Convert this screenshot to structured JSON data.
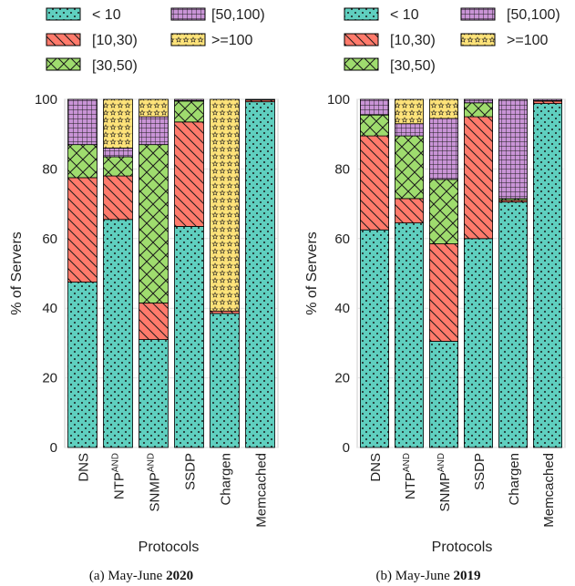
{
  "chart_data": [
    {
      "type": "bar",
      "stacked": true,
      "caption": {
        "prefix": "(a) May-June ",
        "bold": "2020"
      },
      "categories": [
        {
          "name": "DNS",
          "sup": ""
        },
        {
          "name": "NTP",
          "sup": "AND"
        },
        {
          "name": "SNMP",
          "sup": "AND"
        },
        {
          "name": "SSDP",
          "sup": ""
        },
        {
          "name": "Chargen",
          "sup": ""
        },
        {
          "name": "Memcached",
          "sup": ""
        }
      ],
      "series": [
        {
          "name": "< 10",
          "values": [
            47.5,
            65.5,
            31,
            63.5,
            38.5,
            99.3
          ]
        },
        {
          "name": "[10,30)",
          "values": [
            30,
            12.5,
            10.5,
            30,
            0.7,
            0.5
          ]
        },
        {
          "name": "[30,50)",
          "values": [
            9.5,
            5.5,
            45.5,
            6,
            0,
            0
          ]
        },
        {
          "name": "[50,100)",
          "values": [
            13,
            2.5,
            8,
            0.5,
            0,
            0
          ]
        },
        {
          "name": ">=100",
          "values": [
            0,
            14,
            5,
            0,
            60.8,
            0.2
          ]
        }
      ],
      "xlabel": "Protocols",
      "ylabel": "% of Servers",
      "ylim": [
        0,
        100
      ],
      "yticks": [
        0,
        20,
        40,
        60,
        80,
        100
      ],
      "grid": true,
      "legend": "top"
    },
    {
      "type": "bar",
      "stacked": true,
      "caption": {
        "prefix": "(b) May-June ",
        "bold": "2019"
      },
      "categories": [
        {
          "name": "DNS",
          "sup": ""
        },
        {
          "name": "NTP",
          "sup": "AND"
        },
        {
          "name": "SNMP",
          "sup": "AND"
        },
        {
          "name": "SSDP",
          "sup": ""
        },
        {
          "name": "Chargen",
          "sup": ""
        },
        {
          "name": "Memcached",
          "sup": ""
        }
      ],
      "series": [
        {
          "name": "< 10",
          "values": [
            62.5,
            64.5,
            30.5,
            60,
            70.5,
            98.8
          ]
        },
        {
          "name": "[10,30)",
          "values": [
            27,
            7,
            28,
            35,
            0.5,
            0.7
          ]
        },
        {
          "name": "[30,50)",
          "values": [
            6,
            18,
            18.5,
            4,
            0.5,
            0
          ]
        },
        {
          "name": "[50,100)",
          "values": [
            4.5,
            3.5,
            17.5,
            1,
            28.5,
            0.5
          ]
        },
        {
          "name": ">=100",
          "values": [
            0,
            7,
            5.5,
            0,
            0,
            0
          ]
        }
      ],
      "xlabel": "Protocols",
      "ylabel": "% of Servers",
      "ylim": [
        0,
        100
      ],
      "yticks": [
        0,
        20,
        40,
        60,
        80,
        100
      ],
      "grid": true,
      "legend": "top"
    }
  ],
  "series_colors": [
    "#5fcfbf",
    "#ff7a6b",
    "#9fdc6e",
    "#c994d6",
    "#ffe37a"
  ]
}
